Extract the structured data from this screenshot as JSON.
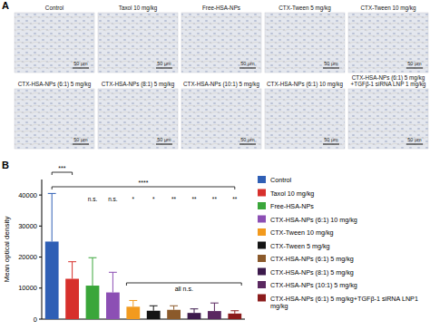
{
  "figure": {
    "panel_a": {
      "label": "A",
      "images": [
        {
          "title_lines": [
            "Control"
          ],
          "scale_bar": "50 μm"
        },
        {
          "title_lines": [
            "Taxol 10 mg/kg"
          ],
          "scale_bar": "50 μm"
        },
        {
          "title_lines": [
            "Free-HSA-NPs"
          ],
          "scale_bar": "50 μm"
        },
        {
          "title_lines": [
            "CTX-Tween 5 mg/kg"
          ],
          "scale_bar": "50 μm"
        },
        {
          "title_lines": [
            "CTX-Tween 10 mg/kg"
          ],
          "scale_bar": "50 μm"
        },
        {
          "title_lines": [
            "CTX-HSA-NPs (6:1) 5 mg/kg"
          ],
          "scale_bar": "50 μm"
        },
        {
          "title_lines": [
            "CTX-HSA-NPs (8:1) 5 mg/kg"
          ],
          "scale_bar": "50 μm"
        },
        {
          "title_lines": [
            "CTX-HSA-NPs (10:1) 5 mg/kg"
          ],
          "scale_bar": "50 μm"
        },
        {
          "title_lines": [
            "CTX-HSA-NPs (6:1) 10 mg/kg"
          ],
          "scale_bar": "50 μm"
        },
        {
          "title_lines": [
            "CTX-HSA-NPs (6:1) 5 mg/kg",
            "+TGFβ-1 siRNA LNP 1 mg/kg"
          ],
          "scale_bar": "50 μm"
        }
      ]
    },
    "panel_b_label": "B"
  },
  "chart_data": {
    "type": "bar",
    "y_label": "Mean optical density",
    "categories": [
      "Control",
      "Taxol 10 mg/kg",
      "Free-HSA-NPs",
      "CTX-HSA-NPs (6:1) 10 mg/kg",
      "CTX-Tween 10 mg/kg",
      "CTX-Tween 5 mg/kg",
      "CTX-HSA-NPs (6:1) 5 mg/kg",
      "CTX-HSA-NPs (8:1) 5 mg/kg",
      "CTX-HSA-NPs (10:1) 5 mg/kg",
      "CTX-HSA-NPs (6:1) 5 mg/kg+TGFβ-1 siRNA LNP1 mg/kg"
    ],
    "values": [
      25000,
      13000,
      10800,
      8600,
      4000,
      2700,
      3000,
      2000,
      2600,
      1800
    ],
    "errors": [
      15500,
      5500,
      9000,
      6500,
      2000,
      1600,
      1300,
      1300,
      2600,
      900
    ],
    "colors": [
      "#2f5fb5",
      "#d7302c",
      "#3aa63a",
      "#8c4fb4",
      "#f29a1e",
      "#141414",
      "#8b5a2b",
      "#3c1a4c",
      "#5a2860",
      "#8b1c1c"
    ],
    "significance": [
      null,
      null,
      "n.s.",
      "n.s.",
      "*",
      "*",
      "**",
      "**",
      "**",
      "**"
    ],
    "comparisons": [
      {
        "label": "***",
        "from": "Control",
        "to": "Taxol 10 mg/kg"
      },
      {
        "label": "****",
        "from": "Control",
        "to": "CTX-HSA-NPs (6:1) 5 mg/kg+TGFβ-1 siRNA LNP1 mg/kg"
      },
      {
        "label": "all n.s.",
        "from": "CTX-Tween 10 mg/kg",
        "to": "CTX-HSA-NPs (6:1) 5 mg/kg+TGFβ-1 siRNA LNP1 mg/kg"
      }
    ],
    "ylim": [
      0,
      45000
    ],
    "yticks": [
      0,
      10000,
      20000,
      30000,
      40000
    ],
    "grid": false,
    "legend": "right",
    "tick_labels": "y"
  }
}
